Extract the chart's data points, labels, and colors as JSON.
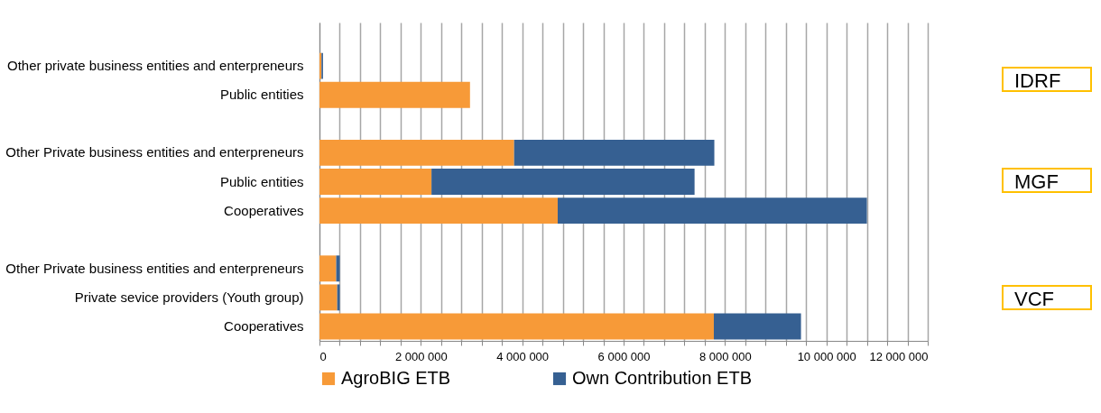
{
  "chart_data": {
    "type": "bar",
    "orientation": "horizontal",
    "stacked": true,
    "categories": [
      null,
      "Other private business entities and enterpreneurs",
      "Public entities",
      null,
      "Other Private business entities and enterpreneurs",
      "Public entities",
      "Cooperatives",
      null,
      "Other Private business entities and enterpreneurs",
      "Private sevice providers (Youth group)",
      "Cooperatives"
    ],
    "series": [
      {
        "name": "AgroBIG ETB",
        "color": "#f79a38",
        "values": [
          null,
          40000,
          2970000,
          null,
          3840000,
          2210000,
          4700000,
          null,
          330000,
          350000,
          7780000
        ]
      },
      {
        "name": "Own Contribution ETB",
        "color": "#366092",
        "values": [
          null,
          30000,
          0,
          null,
          3950000,
          5190000,
          6100000,
          null,
          70000,
          50000,
          1720000
        ]
      }
    ],
    "xlim": [
      0,
      12000000
    ],
    "xticks": [
      0,
      {
        "value": 400000,
        "label": null
      },
      {
        "value": 800000,
        "label": null
      },
      {
        "value": 1200000,
        "label": null
      },
      {
        "value": 1600000,
        "label": null
      },
      {
        "value": 2000000,
        "label": "2 000 000"
      },
      {
        "value": 2400000,
        "label": null
      },
      {
        "value": 2800000,
        "label": null
      },
      {
        "value": 3200000,
        "label": null
      },
      {
        "value": 3600000,
        "label": null
      },
      {
        "value": 4000000,
        "label": "4 000 000"
      },
      {
        "value": 4400000,
        "label": null
      },
      {
        "value": 4800000,
        "label": null
      },
      {
        "value": 5200000,
        "label": null
      },
      {
        "value": 5600000,
        "label": null
      },
      {
        "value": 6000000,
        "label": "6 000 000"
      },
      {
        "value": 6400000,
        "label": null
      },
      {
        "value": 6800000,
        "label": null
      },
      {
        "value": 7200000,
        "label": null
      },
      {
        "value": 7600000,
        "label": null
      },
      {
        "value": 8000000,
        "label": "8 000 000"
      },
      {
        "value": 8400000,
        "label": null
      },
      {
        "value": 8800000,
        "label": null
      },
      {
        "value": 9200000,
        "label": null
      },
      {
        "value": 9600000,
        "label": null
      },
      {
        "value": 10000000,
        "label": "10 000 000"
      },
      {
        "value": 10400000,
        "label": null
      },
      {
        "value": 10800000,
        "label": null
      },
      {
        "value": 11200000,
        "label": null
      },
      {
        "value": 11600000,
        "label": null
      },
      {
        "value": 12000000,
        "label": "12 000 000"
      }
    ],
    "grid": "x",
    "legend": "bottom",
    "annotations": [
      "IDRF",
      "MGF",
      "VCF"
    ]
  }
}
